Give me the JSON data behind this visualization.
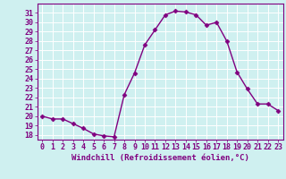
{
  "x": [
    0,
    1,
    2,
    3,
    4,
    5,
    6,
    7,
    8,
    9,
    10,
    11,
    12,
    13,
    14,
    15,
    16,
    17,
    18,
    19,
    20,
    21,
    22,
    23
  ],
  "y": [
    20,
    19.7,
    19.7,
    19.2,
    18.7,
    18.1,
    17.9,
    17.8,
    22.3,
    24.6,
    27.6,
    29.2,
    30.8,
    31.2,
    31.1,
    30.8,
    29.7,
    30.0,
    28.0,
    24.7,
    22.9,
    21.3,
    21.3,
    20.6
  ],
  "line_color": "#800080",
  "marker": "D",
  "marker_size": 2.5,
  "bg_color": "#cff0f0",
  "grid_color": "#ffffff",
  "xlabel": "Windchill (Refroidissement éolien,°C)",
  "xlabel_fontsize": 6.5,
  "tick_fontsize": 6.0,
  "ylim": [
    17.5,
    32.0
  ],
  "xlim": [
    -0.5,
    23.5
  ],
  "yticks": [
    18,
    19,
    20,
    21,
    22,
    23,
    24,
    25,
    26,
    27,
    28,
    29,
    30,
    31
  ],
  "xticks": [
    0,
    1,
    2,
    3,
    4,
    5,
    6,
    7,
    8,
    9,
    10,
    11,
    12,
    13,
    14,
    15,
    16,
    17,
    18,
    19,
    20,
    21,
    22,
    23
  ],
  "tick_color": "#800080",
  "label_color": "#800080",
  "spine_color": "#800080",
  "linewidth": 1.0
}
